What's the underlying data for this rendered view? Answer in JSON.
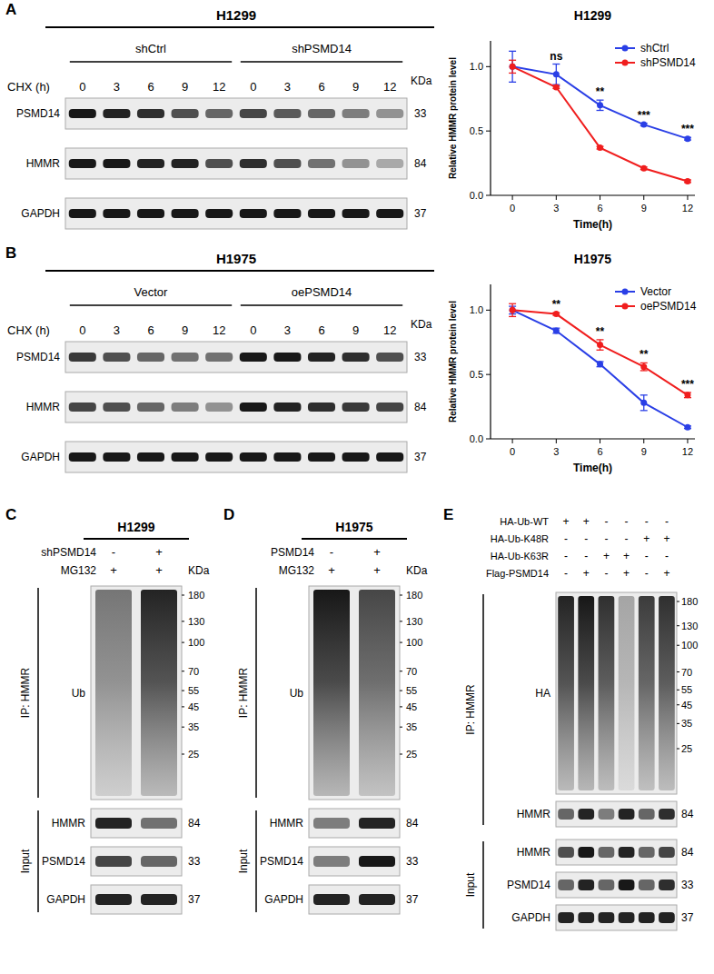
{
  "blot_panels": [
    {
      "letter": "A",
      "cell_line": "H1299",
      "groups": [
        "shCtrl",
        "shPSMD14"
      ],
      "condition_label": "CHX (h)",
      "times": [
        0,
        3,
        6,
        9,
        12
      ],
      "unit": "KDa",
      "rows": [
        {
          "protein": "PSMD14",
          "kda": 33,
          "bands": [
            0.95,
            0.9,
            0.85,
            0.7,
            0.6,
            0.75,
            0.65,
            0.6,
            0.5,
            0.4
          ]
        },
        {
          "protein": "HMMR",
          "kda": 84,
          "bands": [
            0.95,
            0.95,
            0.9,
            0.9,
            0.7,
            0.85,
            0.7,
            0.55,
            0.4,
            0.3
          ]
        },
        {
          "protein": "GAPDH",
          "kda": 37,
          "bands": [
            0.95,
            0.95,
            0.95,
            0.95,
            0.95,
            0.95,
            0.95,
            0.95,
            0.95,
            0.95
          ]
        }
      ]
    },
    {
      "letter": "B",
      "cell_line": "H1975",
      "groups": [
        "Vector",
        "oePSMD14"
      ],
      "condition_label": "CHX (h)",
      "times": [
        0,
        3,
        6,
        9,
        12
      ],
      "unit": "KDa",
      "rows": [
        {
          "protein": "PSMD14",
          "kda": 33,
          "bands": [
            0.8,
            0.7,
            0.6,
            0.55,
            0.55,
            0.95,
            0.95,
            0.9,
            0.85,
            0.7
          ]
        },
        {
          "protein": "HMMR",
          "kda": 84,
          "bands": [
            0.75,
            0.7,
            0.6,
            0.5,
            0.4,
            0.95,
            0.9,
            0.85,
            0.8,
            0.75
          ]
        },
        {
          "protein": "GAPDH",
          "kda": 37,
          "bands": [
            0.95,
            0.95,
            0.95,
            0.95,
            0.95,
            0.95,
            0.95,
            0.95,
            0.95,
            0.95
          ]
        }
      ]
    },
    {
      "letter": "C",
      "cell_line": "H1299",
      "unit": "KDa",
      "treatments": [
        {
          "name": "shPSMD14",
          "signs": [
            "-",
            "+"
          ]
        },
        {
          "name": "MG132",
          "signs": [
            "+",
            "+"
          ]
        }
      ],
      "ip_label": "IP: HMMR",
      "ip_rows": [
        {
          "protein": "Ub",
          "smear": [
            0.5,
            0.85
          ],
          "markers": [
            180,
            130,
            100,
            70,
            55,
            45,
            35,
            25
          ]
        }
      ],
      "input_label": "Input",
      "input_rows": [
        {
          "protein": "HMMR",
          "kda": 84,
          "bands": [
            0.9,
            0.55
          ]
        },
        {
          "protein": "PSMD14",
          "kda": 33,
          "bands": [
            0.75,
            0.6
          ]
        },
        {
          "protein": "GAPDH",
          "kda": 37,
          "bands": [
            0.9,
            0.9
          ]
        }
      ]
    },
    {
      "letter": "D",
      "cell_line": "H1975",
      "unit": "KDa",
      "treatments": [
        {
          "name": "PSMD14",
          "signs": [
            "-",
            "+"
          ]
        },
        {
          "name": "MG132",
          "signs": [
            "+",
            "+"
          ]
        }
      ],
      "ip_label": "IP: HMMR",
      "ip_rows": [
        {
          "protein": "Ub",
          "smear": [
            0.9,
            0.7
          ],
          "markers": [
            180,
            130,
            100,
            70,
            55,
            45,
            35,
            25
          ]
        }
      ],
      "input_label": "Input",
      "input_rows": [
        {
          "protein": "HMMR",
          "kda": 84,
          "bands": [
            0.5,
            0.9
          ]
        },
        {
          "protein": "PSMD14",
          "kda": 33,
          "bands": [
            0.5,
            0.95
          ]
        },
        {
          "protein": "GAPDH",
          "kda": 37,
          "bands": [
            0.9,
            0.9
          ]
        }
      ]
    },
    {
      "letter": "E",
      "treatments": [
        {
          "name": "HA-Ub-WT",
          "signs": [
            "+",
            "+",
            "-",
            "-",
            "-",
            "-"
          ]
        },
        {
          "name": "HA-Ub-K48R",
          "signs": [
            "-",
            "-",
            "-",
            "-",
            "+",
            "+"
          ]
        },
        {
          "name": "HA-Ub-K63R",
          "signs": [
            "-",
            "-",
            "+",
            "+",
            "-",
            "-"
          ]
        },
        {
          "name": "Flag-PSMD14",
          "signs": [
            "-",
            "+",
            "-",
            "+",
            "-",
            "+"
          ]
        }
      ],
      "ip_label": "IP: HMMR",
      "ip_rows": [
        {
          "protein": "HA",
          "smear": [
            0.85,
            0.9,
            0.8,
            0.3,
            0.75,
            0.8
          ],
          "markers": [
            180,
            130,
            100,
            70,
            55,
            45,
            35,
            25
          ]
        },
        {
          "protein": "HMMR",
          "kda": 84,
          "bands": [
            0.6,
            0.9,
            0.5,
            0.9,
            0.6,
            0.85
          ]
        }
      ],
      "input_label": "Input",
      "input_rows": [
        {
          "protein": "HMMR",
          "kda": 84,
          "bands": [
            0.7,
            0.95,
            0.6,
            0.9,
            0.6,
            0.75
          ]
        },
        {
          "protein": "PSMD14",
          "kda": 33,
          "bands": [
            0.6,
            0.9,
            0.6,
            0.95,
            0.6,
            0.85
          ]
        },
        {
          "protein": "GAPDH",
          "kda": 37,
          "bands": [
            0.9,
            0.9,
            0.9,
            0.9,
            0.9,
            0.9
          ]
        }
      ]
    }
  ],
  "chart_data": [
    {
      "type": "line",
      "title": "H1299",
      "xlabel": "Time(h)",
      "ylabel": "Relative HMMR protein level",
      "x": [
        0,
        3,
        6,
        9,
        12
      ],
      "xlim": [
        -1.5,
        12.5
      ],
      "ylim": [
        0,
        1.2
      ],
      "xticks": [
        0,
        3,
        6,
        9,
        12
      ],
      "yticks": [
        {
          "value": 0,
          "label": "0.0"
        },
        {
          "value": 0.5,
          "label": "0.5"
        },
        {
          "value": 1,
          "label": "1.0"
        }
      ],
      "legend": "upper right",
      "series": [
        {
          "name": "shCtrl",
          "color": "#2a3fe6",
          "marker": "circle",
          "values": [
            1.0,
            0.94,
            0.7,
            0.55,
            0.44
          ],
          "errors": [
            0.12,
            0.08,
            0.04,
            0.01,
            0.01
          ]
        },
        {
          "name": "shPSMD14",
          "color": "#f01e1e",
          "marker": "circle",
          "values": [
            1.0,
            0.84,
            0.37,
            0.21,
            0.11
          ],
          "errors": [
            0.05,
            0.01,
            0.01,
            0.01,
            0.01
          ]
        }
      ],
      "annotations": [
        {
          "x": 3,
          "text": "ns"
        },
        {
          "x": 6,
          "text": "**"
        },
        {
          "x": 9,
          "text": "***"
        },
        {
          "x": 12,
          "text": "***"
        }
      ]
    },
    {
      "type": "line",
      "title": "H1975",
      "xlabel": "Time(h)",
      "ylabel": "Relative HMMR protein level",
      "x": [
        0,
        3,
        6,
        9,
        12
      ],
      "xlim": [
        -1.5,
        12.5
      ],
      "ylim": [
        0,
        1.2
      ],
      "xticks": [
        0,
        3,
        6,
        9,
        12
      ],
      "yticks": [
        {
          "value": 0,
          "label": "0.0"
        },
        {
          "value": 0.5,
          "label": "0.5"
        },
        {
          "value": 1,
          "label": "1.0"
        }
      ],
      "legend": "upper right",
      "series": [
        {
          "name": "Vector",
          "color": "#2a3fe6",
          "marker": "circle",
          "values": [
            1.0,
            0.84,
            0.58,
            0.28,
            0.09
          ],
          "errors": [
            0.03,
            0.02,
            0.02,
            0.06,
            0.01
          ]
        },
        {
          "name": "oePSMD14",
          "color": "#f01e1e",
          "marker": "circle",
          "values": [
            1.0,
            0.97,
            0.73,
            0.56,
            0.34
          ],
          "errors": [
            0.05,
            0.01,
            0.04,
            0.03,
            0.02
          ]
        }
      ],
      "annotations": [
        {
          "x": 3,
          "text": "**"
        },
        {
          "x": 6,
          "text": "**"
        },
        {
          "x": 9,
          "text": "**"
        },
        {
          "x": 12,
          "text": "***"
        }
      ]
    }
  ]
}
